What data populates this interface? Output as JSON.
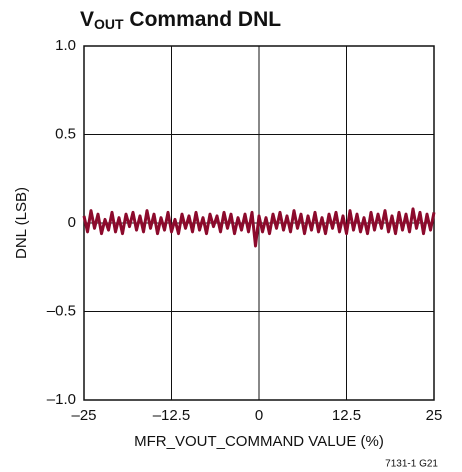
{
  "chart_data": {
    "type": "line",
    "title": {
      "main": "V",
      "subscript": "OUT",
      "rest": " Command DNL"
    },
    "xlabel": "MFR_VOUT_COMMAND VALUE (%)",
    "ylabel": "DNL (LSB)",
    "annotation": "7131-1 G21",
    "xlim": [
      -25,
      25
    ],
    "ylim": [
      -1,
      1
    ],
    "xticks": [
      {
        "value": -25,
        "label": "–25"
      },
      {
        "value": -12.5,
        "label": "–12.5"
      },
      0,
      12.5,
      25
    ],
    "yticks": [
      {
        "value": -1,
        "label": "–1.0"
      },
      {
        "value": -0.5,
        "label": "–0.5"
      },
      0,
      0.5,
      {
        "value": 1,
        "label": "1.0"
      }
    ],
    "grid": true,
    "x": [
      -25,
      -24.5,
      -24,
      -23.5,
      -23,
      -22.5,
      -22,
      -21.5,
      -21,
      -20.5,
      -20,
      -19.5,
      -19,
      -18.5,
      -18,
      -17.5,
      -17,
      -16.5,
      -16,
      -15.5,
      -15,
      -14.5,
      -14,
      -13.5,
      -13,
      -12.5,
      -12,
      -11.5,
      -11,
      -10.5,
      -10,
      -9.5,
      -9,
      -8.5,
      -8,
      -7.5,
      -7,
      -6.5,
      -6,
      -5.5,
      -5,
      -4.5,
      -4,
      -3.5,
      -3,
      -2.5,
      -2,
      -1.5,
      -1,
      -0.5,
      0,
      0.5,
      1,
      1.5,
      2,
      2.5,
      3,
      3.5,
      4,
      4.5,
      5,
      5.5,
      6,
      6.5,
      7,
      7.5,
      8,
      8.5,
      9,
      9.5,
      10,
      10.5,
      11,
      11.5,
      12,
      12.5,
      13,
      13.5,
      14,
      14.5,
      15,
      15.5,
      16,
      16.5,
      17,
      17.5,
      18,
      18.5,
      19,
      19.5,
      20,
      20.5,
      21,
      21.5,
      22,
      22.5,
      23,
      23.5,
      24,
      24.5,
      25
    ],
    "series": [
      {
        "name": "DNL",
        "color": "#8c0a2c",
        "values": [
          0.04,
          -0.05,
          0.07,
          -0.03,
          0.05,
          -0.06,
          0.02,
          -0.04,
          0.06,
          -0.05,
          0.03,
          -0.06,
          0.05,
          -0.02,
          0.06,
          -0.04,
          0.04,
          -0.05,
          0.07,
          -0.03,
          0.05,
          -0.06,
          0.03,
          -0.04,
          0.06,
          -0.05,
          0.02,
          -0.06,
          0.05,
          -0.03,
          0.04,
          -0.05,
          0.06,
          -0.04,
          0.03,
          -0.06,
          0.05,
          -0.02,
          0.04,
          -0.05,
          0.06,
          -0.03,
          0.05,
          -0.06,
          0.03,
          -0.04,
          0.05,
          -0.05,
          0.06,
          -0.13,
          0.04,
          -0.05,
          0.03,
          -0.06,
          0.05,
          -0.03,
          0.06,
          -0.04,
          0.04,
          -0.05,
          0.07,
          -0.03,
          0.05,
          -0.06,
          0.04,
          -0.04,
          0.06,
          -0.05,
          0.03,
          -0.06,
          0.05,
          -0.03,
          0.06,
          -0.05,
          0.04,
          -0.06,
          0.07,
          -0.04,
          0.05,
          -0.05,
          0.03,
          -0.06,
          0.06,
          -0.04,
          0.05,
          -0.03,
          0.07,
          -0.05,
          0.04,
          -0.06,
          0.06,
          -0.04,
          0.05,
          -0.05,
          0.08,
          -0.03,
          0.06,
          -0.06,
          0.05,
          -0.04,
          0.06
        ]
      }
    ]
  }
}
